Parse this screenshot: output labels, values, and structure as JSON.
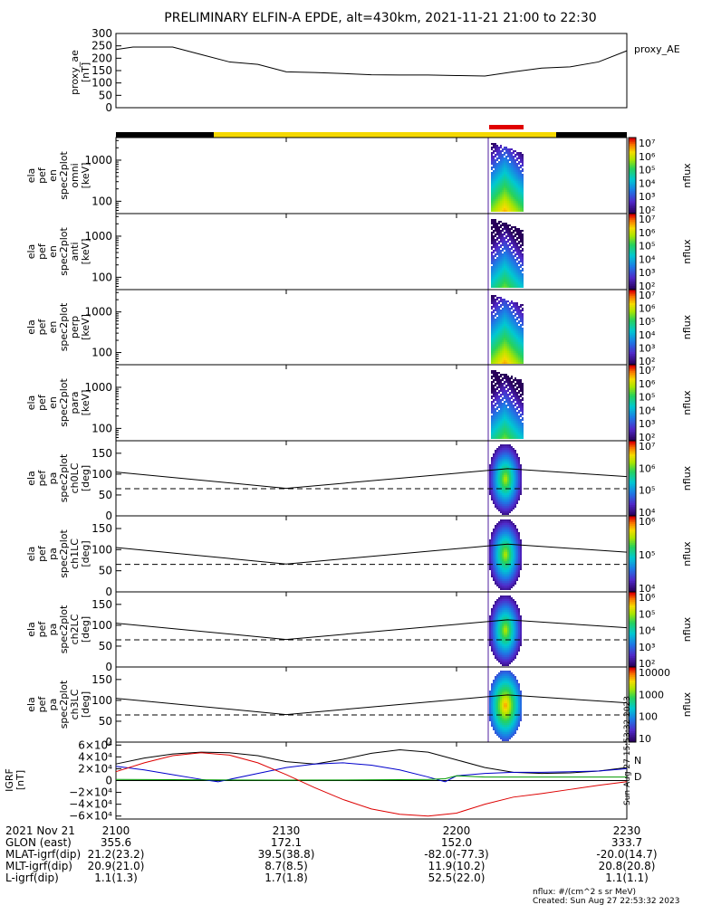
{
  "title": "PRELIMINARY ELFIN-A EPDE, alt=430km, 2021-11-21 21:00 to 22:30",
  "colors": {
    "axis": "#000000",
    "spin_bar": "#e00000",
    "night": "#000000",
    "day": "#f5d800",
    "bx": "#000000",
    "by": "#0000cc",
    "bz": "#009900",
    "bt": "#dd0000"
  },
  "chart_data": [
    {
      "type": "line",
      "panel": "proxy_ae",
      "ylabel": [
        "proxy_ae",
        "[nT]"
      ],
      "legend": "proxy_AE",
      "ylim": [
        0,
        300
      ],
      "yticks": [
        0,
        50,
        100,
        150,
        200,
        250,
        300
      ],
      "x": [
        0,
        3,
        6,
        10,
        15,
        20,
        25,
        30,
        35,
        40,
        45,
        50,
        55,
        60,
        65,
        70,
        75,
        80,
        85,
        90
      ],
      "values": [
        235,
        245,
        245,
        245,
        215,
        185,
        175,
        145,
        142,
        138,
        133,
        132,
        132,
        130,
        128,
        145,
        160,
        165,
        185,
        230
      ]
    },
    {
      "type": "heatmap",
      "panel": "spec_omni",
      "ylabel": [
        "ela",
        "pef",
        "en",
        "spec2plot",
        "omni",
        "[keV]"
      ],
      "scale": "log",
      "yticks": [
        "100",
        "1000"
      ],
      "colorbar_label": "nflux",
      "colorbar_ticks": [
        "10²",
        "10³",
        "10⁴",
        "10⁵",
        "10⁶",
        "10⁷"
      ]
    },
    {
      "type": "heatmap",
      "panel": "spec_anti",
      "ylabel": [
        "ela",
        "pef",
        "en",
        "spec2plot",
        "anti",
        "[keV]"
      ],
      "scale": "log",
      "yticks": [
        "100",
        "1000"
      ],
      "colorbar_label": "nflux",
      "colorbar_ticks": [
        "10²",
        "10³",
        "10⁴",
        "10⁵",
        "10⁶",
        "10⁷"
      ]
    },
    {
      "type": "heatmap",
      "panel": "spec_perp",
      "ylabel": [
        "ela",
        "pef",
        "en",
        "spec2plot",
        "perp",
        "[keV]"
      ],
      "scale": "log",
      "yticks": [
        "100",
        "1000"
      ],
      "colorbar_label": "nflux",
      "colorbar_ticks": [
        "10²",
        "10³",
        "10⁴",
        "10⁵",
        "10⁶",
        "10⁷"
      ]
    },
    {
      "type": "heatmap",
      "panel": "spec_para",
      "ylabel": [
        "ela",
        "pef",
        "en",
        "spec2plot",
        "para",
        "[keV]"
      ],
      "scale": "log",
      "yticks": [
        "100",
        "1000"
      ],
      "colorbar_label": "nflux",
      "colorbar_ticks": [
        "10²",
        "10³",
        "10⁴",
        "10⁵",
        "10⁶",
        "10⁷"
      ]
    },
    {
      "type": "heatmap",
      "panel": "pa_ch0",
      "ylabel": [
        "ela",
        "pef",
        "pa",
        "spec2plot",
        "ch0LC",
        "[deg]"
      ],
      "ylim": [
        0,
        180
      ],
      "yticks": [
        "0",
        "50",
        "100",
        "150"
      ],
      "colorbar_label": "nflux",
      "colorbar_ticks": [
        "10⁴",
        "10⁵",
        "10⁶",
        "10⁷"
      ],
      "lc_x": [
        0,
        30,
        69,
        90
      ],
      "lc_solid": [
        105,
        66,
        113,
        94
      ],
      "lc_dashed": [
        65,
        65,
        65,
        65
      ]
    },
    {
      "type": "heatmap",
      "panel": "pa_ch1",
      "ylabel": [
        "ela",
        "pef",
        "pa",
        "spec2plot",
        "ch1LC",
        "[deg]"
      ],
      "ylim": [
        0,
        180
      ],
      "yticks": [
        "0",
        "50",
        "100",
        "150"
      ],
      "colorbar_label": "nflux",
      "colorbar_ticks": [
        "10⁴",
        "10⁵",
        "10⁶"
      ],
      "lc_x": [
        0,
        30,
        69,
        90
      ],
      "lc_solid": [
        105,
        66,
        113,
        94
      ],
      "lc_dashed": [
        65,
        65,
        65,
        65
      ]
    },
    {
      "type": "heatmap",
      "panel": "pa_ch2",
      "ylabel": [
        "ela",
        "pef",
        "pa",
        "spec2plot",
        "ch2LC",
        "[deg]"
      ],
      "ylim": [
        0,
        180
      ],
      "yticks": [
        "0",
        "50",
        "100",
        "150"
      ],
      "colorbar_label": "nflux",
      "colorbar_ticks": [
        "10²",
        "10³",
        "10⁴",
        "10⁵",
        "10⁶"
      ],
      "lc_x": [
        0,
        30,
        69,
        90
      ],
      "lc_solid": [
        105,
        66,
        113,
        94
      ],
      "lc_dashed": [
        65,
        65,
        65,
        65
      ]
    },
    {
      "type": "heatmap",
      "panel": "pa_ch3",
      "ylabel": [
        "ela",
        "pef",
        "pa",
        "spec2plot",
        "ch3LC",
        "[deg]"
      ],
      "ylim": [
        0,
        180
      ],
      "yticks": [
        "0",
        "50",
        "100",
        "150"
      ],
      "colorbar_label": "nflux",
      "colorbar_ticks": [
        "10",
        "100",
        "1000",
        "10000"
      ],
      "lc_x": [
        0,
        30,
        69,
        90
      ],
      "lc_solid": [
        105,
        66,
        113,
        94
      ],
      "lc_dashed": [
        65,
        65,
        65,
        65
      ]
    },
    {
      "type": "line",
      "panel": "igrf",
      "ylabel": [
        "IGRF",
        "[nT]"
      ],
      "ylim": [
        -65000,
        65000
      ],
      "yticks": [
        "6×10⁴",
        "4×10⁴",
        "2×10⁴",
        "0",
        "−2×10⁴",
        "−4×10⁴",
        "−6×10⁴"
      ],
      "ytick_values": [
        60000,
        40000,
        20000,
        0,
        -20000,
        -40000,
        -60000
      ],
      "legend": [
        "N",
        "D"
      ],
      "series": [
        {
          "x": [
            0,
            5,
            10,
            15,
            20,
            25,
            30,
            35,
            40,
            45,
            50,
            55,
            60,
            65,
            70,
            75,
            80,
            85,
            90
          ],
          "values": [
            28000,
            38000,
            45000,
            48000,
            47000,
            42000,
            32000,
            28000,
            36000,
            46000,
            52000,
            48000,
            35000,
            22000,
            14000,
            12000,
            13000,
            16000,
            22000
          ]
        },
        {
          "x": [
            0,
            5,
            10,
            15,
            18,
            20,
            25,
            30,
            35,
            40,
            45,
            50,
            55,
            58,
            60,
            65,
            70,
            75,
            80,
            85,
            90
          ],
          "values": [
            24000,
            18000,
            10000,
            2000,
            -2000,
            2000,
            12000,
            22000,
            28000,
            30000,
            26000,
            18000,
            6000,
            -2000,
            8000,
            12000,
            14000,
            14000,
            15000,
            16000,
            20000
          ]
        },
        {
          "x": [
            0,
            10,
            20,
            30,
            40,
            50,
            55,
            58,
            60,
            65,
            70,
            80,
            90
          ],
          "values": [
            2000,
            1500,
            1000,
            800,
            1000,
            1500,
            2000,
            3000,
            8000,
            6000,
            6000,
            6000,
            6000
          ]
        },
        {
          "x": [
            0,
            5,
            10,
            15,
            20,
            25,
            30,
            35,
            40,
            45,
            50,
            55,
            60,
            65,
            70,
            75,
            80,
            85,
            90
          ],
          "values": [
            15000,
            30000,
            42000,
            47000,
            43000,
            30000,
            10000,
            -12000,
            -32000,
            -48000,
            -57000,
            -60000,
            -55000,
            -40000,
            -28000,
            -22000,
            -15000,
            -8000,
            -2000
          ]
        }
      ]
    }
  ],
  "xaxis": {
    "ticks": [
      "2100",
      "2130",
      "2200",
      "2230"
    ],
    "date_label": "2021 Nov 21",
    "rows": [
      {
        "label": "GLON (east)",
        "values": [
          "355.6",
          "172.1",
          "152.0",
          "333.7"
        ]
      },
      {
        "label": "MLAT-igrf(dip)",
        "values": [
          "21.2(23.2)",
          "39.5(38.8)",
          "-82.0(-77.3)",
          "-20.0(14.7)"
        ]
      },
      {
        "label": "MLT-igrf(dip)",
        "values": [
          "20.9(21.0)",
          "8.7(8.5)",
          "11.9(10.2)",
          "20.8(20.8)"
        ]
      },
      {
        "label": "L-igrf(dip)",
        "values": [
          "1.1(1.3)",
          "1.7(1.8)",
          "52.5(22.0)",
          "1.1(1.1)"
        ]
      }
    ]
  },
  "footer": {
    "units": "nflux: #/(cm^2 s sr MeV)",
    "created": "Created: Sun Aug 27 22:53:32 2023",
    "side_stamp": "Sun Aug 27 15:53:32 2023"
  }
}
